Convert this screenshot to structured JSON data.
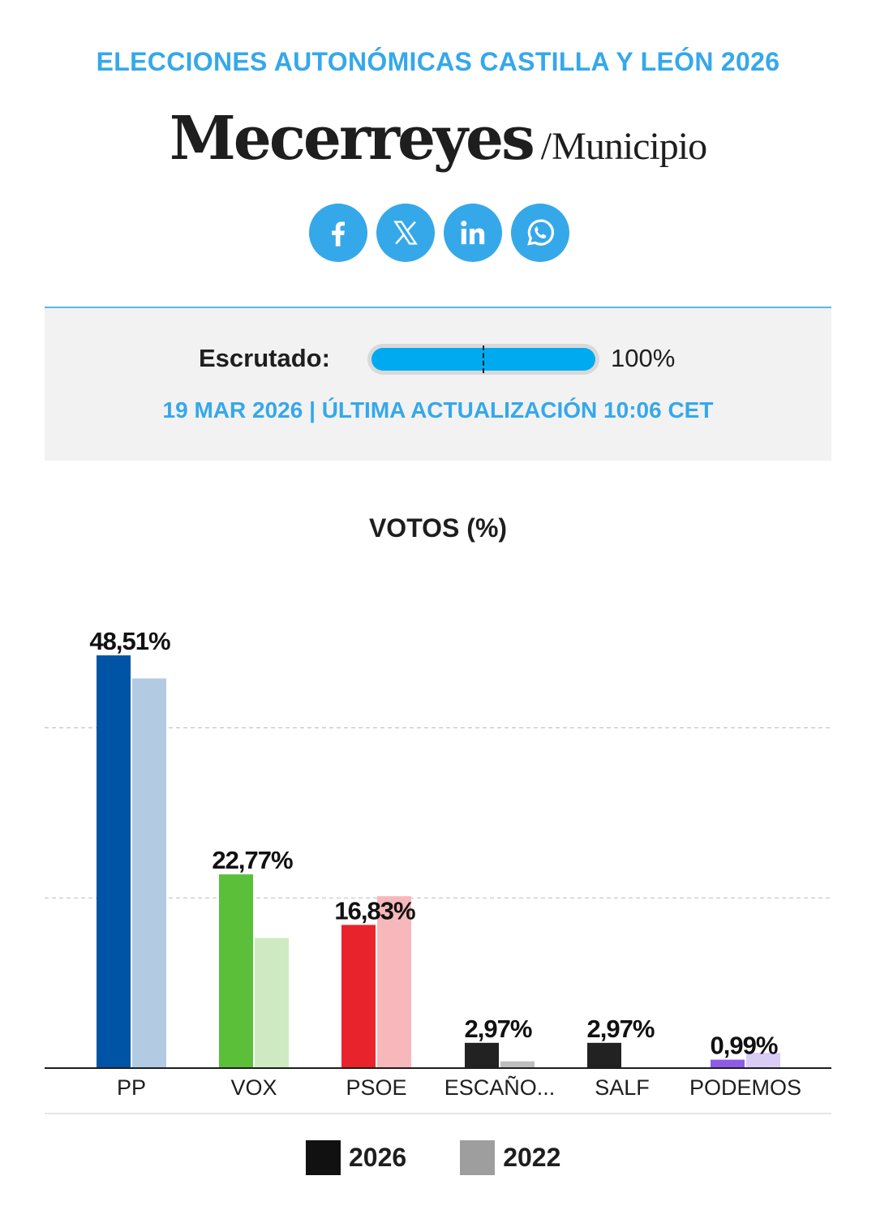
{
  "header": {
    "supertitle": "ELECCIONES AUTONÓMICAS CASTILLA Y LEÓN 2026",
    "place_name": "Mecerreyes",
    "place_separator": "/",
    "place_type": "Municipio"
  },
  "share": {
    "icons": [
      "facebook-icon",
      "x-icon",
      "linkedin-icon",
      "whatsapp-icon"
    ],
    "color": "#35a8ea"
  },
  "status": {
    "label": "Escrutado:",
    "progress_fraction": 1.0,
    "value": "100%",
    "date": "19 MAR 2026 | ÚLTIMA ACTUALIZACIÓN 10:06 CET",
    "progress_color": "#00aaf0"
  },
  "chart_data": {
    "type": "bar",
    "title": "VOTOS (%)",
    "xlabel": "",
    "ylabel": "",
    "ylim": [
      0,
      55
    ],
    "grid": true,
    "legend_position": "bottom",
    "categories": [
      "PP",
      "VOX",
      "PSOE",
      "ESCAÑO...",
      "SALF",
      "PODEMOS"
    ],
    "series": [
      {
        "name": "2026",
        "values": [
          48.51,
          22.77,
          16.83,
          2.97,
          2.97,
          0.99
        ],
        "labels": [
          "48,51%",
          "22,77%",
          "16,83%",
          "2,97%",
          "2,97%",
          "0,99%"
        ],
        "colors": [
          "#0054a6",
          "#5bbf3a",
          "#e8232b",
          "#222222",
          "#222222",
          "#8e5be6"
        ]
      },
      {
        "name": "2022",
        "values": [
          45.8,
          15.3,
          20.2,
          0.8,
          0,
          1.8
        ],
        "colors": [
          "#b2cbe3",
          "#ceeac3",
          "#f7b8bb",
          "#bdbdbd",
          "#bdbdbd",
          "#d9cdf6"
        ]
      }
    ],
    "legend": [
      {
        "label": "2026",
        "color": "#111111"
      },
      {
        "label": "2022",
        "color": "#9e9e9e"
      }
    ]
  }
}
